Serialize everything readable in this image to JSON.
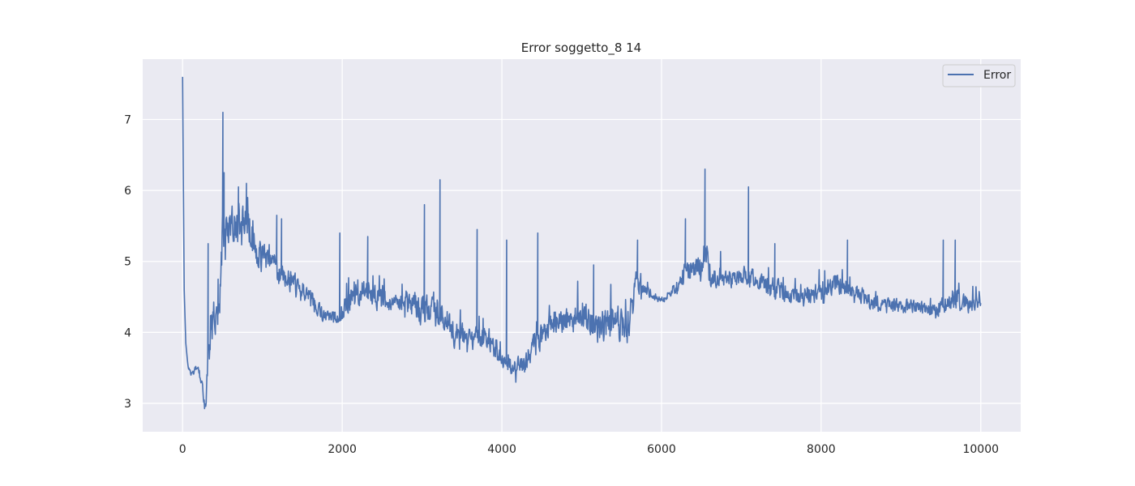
{
  "chart_data": {
    "type": "line",
    "title": "Error soggetto_8 14",
    "xlabel": "",
    "ylabel": "",
    "xlim": [
      -500,
      10500
    ],
    "ylim": [
      2.6,
      7.85
    ],
    "xticks": [
      0,
      2000,
      4000,
      6000,
      8000,
      10000
    ],
    "xtick_labels": [
      "0",
      "2000",
      "4000",
      "6000",
      "8000",
      "10000"
    ],
    "yticks": [
      3,
      4,
      5,
      6,
      7
    ],
    "ytick_labels": [
      "3",
      "4",
      "5",
      "6",
      "7"
    ],
    "grid": true,
    "legend": {
      "placement": "top-right",
      "entries": [
        "Error"
      ]
    },
    "colors": {
      "line": "#4c72b0",
      "plot_bg": "#eaeaf2",
      "grid": "#ffffff"
    },
    "series": [
      {
        "name": "Error",
        "noise_seed": 8,
        "anchors": [
          [
            0,
            7.6,
            0
          ],
          [
            5,
            6.8,
            0
          ],
          [
            20,
            4.6,
            0
          ],
          [
            40,
            3.85,
            0
          ],
          [
            70,
            3.5,
            0.03
          ],
          [
            120,
            3.4,
            0.05
          ],
          [
            160,
            3.5,
            0.06
          ],
          [
            200,
            3.45,
            0.06
          ],
          [
            240,
            3.3,
            0.08
          ],
          [
            270,
            3.0,
            0.08
          ],
          [
            290,
            2.9,
            0.1
          ],
          [
            320,
            3.6,
            0.3
          ],
          [
            360,
            4.1,
            0.4
          ],
          [
            420,
            4.2,
            0.45
          ],
          [
            470,
            4.6,
            0.4
          ],
          [
            500,
            5.3,
            0.5
          ],
          [
            560,
            5.3,
            0.35
          ],
          [
            650,
            5.55,
            0.35
          ],
          [
            800,
            5.55,
            0.35
          ],
          [
            1000,
            5.05,
            0.3
          ],
          [
            1200,
            4.85,
            0.25
          ],
          [
            1400,
            4.7,
            0.2
          ],
          [
            1600,
            4.5,
            0.15
          ],
          [
            1750,
            4.25,
            0.12
          ],
          [
            1950,
            4.2,
            0.12
          ],
          [
            2100,
            4.5,
            0.25
          ],
          [
            2300,
            4.6,
            0.25
          ],
          [
            2450,
            4.45,
            0.2
          ],
          [
            2700,
            4.4,
            0.2
          ],
          [
            3000,
            4.35,
            0.3
          ],
          [
            3200,
            4.3,
            0.3
          ],
          [
            3400,
            4.0,
            0.25
          ],
          [
            3600,
            3.9,
            0.2
          ],
          [
            3800,
            3.95,
            0.2
          ],
          [
            4000,
            3.6,
            0.15
          ],
          [
            4150,
            3.5,
            0.15
          ],
          [
            4300,
            3.55,
            0.2
          ],
          [
            4450,
            3.9,
            0.25
          ],
          [
            4600,
            4.1,
            0.2
          ],
          [
            4800,
            4.15,
            0.25
          ],
          [
            5000,
            4.2,
            0.25
          ],
          [
            5200,
            4.1,
            0.3
          ],
          [
            5400,
            4.15,
            0.3
          ],
          [
            5600,
            4.1,
            0.35
          ],
          [
            5680,
            4.7,
            0.2
          ],
          [
            5800,
            4.6,
            0.1
          ],
          [
            6000,
            4.45,
            0.05
          ],
          [
            6150,
            4.6,
            0.1
          ],
          [
            6300,
            4.85,
            0.2
          ],
          [
            6500,
            4.9,
            0.25
          ],
          [
            6550,
            5.2,
            0.3
          ],
          [
            6600,
            4.8,
            0.2
          ],
          [
            6800,
            4.75,
            0.15
          ],
          [
            7000,
            4.8,
            0.2
          ],
          [
            7200,
            4.75,
            0.15
          ],
          [
            7400,
            4.6,
            0.2
          ],
          [
            7600,
            4.55,
            0.15
          ],
          [
            7800,
            4.5,
            0.2
          ],
          [
            8000,
            4.55,
            0.2
          ],
          [
            8200,
            4.7,
            0.2
          ],
          [
            8400,
            4.6,
            0.15
          ],
          [
            8600,
            4.45,
            0.15
          ],
          [
            8800,
            4.35,
            0.15
          ],
          [
            9000,
            4.35,
            0.15
          ],
          [
            9200,
            4.35,
            0.12
          ],
          [
            9400,
            4.3,
            0.12
          ],
          [
            9500,
            4.35,
            0.15
          ],
          [
            9700,
            4.45,
            0.2
          ],
          [
            9800,
            4.4,
            0.15
          ],
          [
            9900,
            4.35,
            0.15
          ],
          [
            10000,
            4.4,
            0.15
          ]
        ],
        "spikes": [
          [
            320,
            5.25
          ],
          [
            445,
            4.75
          ],
          [
            505,
            7.1
          ],
          [
            520,
            6.25
          ],
          [
            700,
            6.05
          ],
          [
            800,
            6.1
          ],
          [
            1180,
            5.65
          ],
          [
            1240,
            5.6
          ],
          [
            1970,
            5.4
          ],
          [
            2320,
            5.35
          ],
          [
            3030,
            5.8
          ],
          [
            3225,
            6.15
          ],
          [
            3690,
            5.45
          ],
          [
            4060,
            5.3
          ],
          [
            4450,
            5.4
          ],
          [
            5150,
            4.95
          ],
          [
            5700,
            5.3
          ],
          [
            6300,
            5.6
          ],
          [
            6545,
            6.3
          ],
          [
            7090,
            6.05
          ],
          [
            7420,
            5.25
          ],
          [
            8330,
            5.3
          ],
          [
            9530,
            5.3
          ],
          [
            9680,
            5.3
          ]
        ]
      }
    ]
  }
}
